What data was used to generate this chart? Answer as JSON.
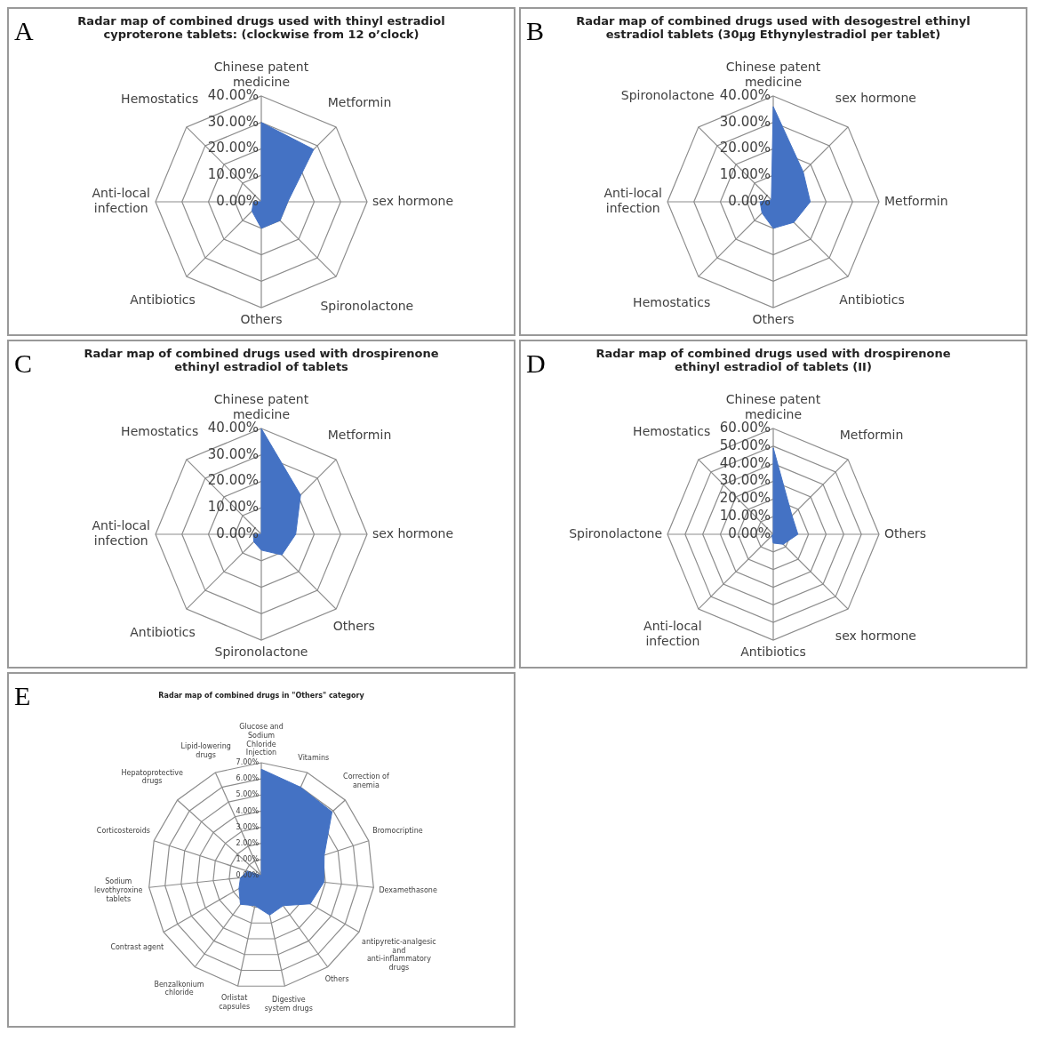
{
  "chart_data": [
    {
      "type": "radar",
      "title": "Radar map of combined drugs used with thinyl estradiol cyproterone tablets: (clockwise from 12 o’clock)",
      "annotations": [
        "A"
      ],
      "categories": [
        "Chinese patent medicine",
        "Metformin",
        "sex hormone",
        "Spironolactone",
        "Others",
        "Antibiotics",
        "Anti-local infection",
        "Hemostatics"
      ],
      "series": [
        {
          "color": "#4472c4",
          "values": [
            30,
            28,
            10,
            10,
            10,
            5,
            3,
            0
          ]
        }
      ],
      "ylim": [
        0,
        40
      ],
      "yticks": [
        {
          "value": 0,
          "label": "0.00%"
        },
        {
          "value": 10,
          "label": "10.00%"
        },
        {
          "value": 20,
          "label": "20.00%"
        },
        {
          "value": 30,
          "label": "30.00%"
        },
        {
          "value": 40,
          "label": "40.00%"
        }
      ],
      "grid": true,
      "marker": "none"
    },
    {
      "type": "radar",
      "title": "Radar map of combined drugs used with desogestrel ethinyl estradiol tablets (30μg Ethynylestradiol per tablet)",
      "annotations": [
        "B"
      ],
      "categories": [
        "Chinese patent medicine",
        "sex hormone",
        "Metformin",
        "Antibiotics",
        "Others",
        "Hemostatics",
        "Anti-local infection",
        "Spironolactone"
      ],
      "series": [
        {
          "color": "#4472c4",
          "values": [
            36,
            16,
            14,
            11,
            10,
            6,
            5,
            1
          ]
        }
      ],
      "ylim": [
        0,
        40
      ],
      "yticks": [
        {
          "value": 0,
          "label": "0.00%"
        },
        {
          "value": 10,
          "label": "10.00%"
        },
        {
          "value": 20,
          "label": "20.00%"
        },
        {
          "value": 30,
          "label": "30.00%"
        },
        {
          "value": 40,
          "label": "40.00%"
        }
      ],
      "grid": true,
      "marker": "none"
    },
    {
      "type": "radar",
      "title": "Radar map of combined drugs used with drospirenone ethinyl estradiol of tablets",
      "annotations": [
        "C"
      ],
      "categories": [
        "Chinese patent medicine",
        "Metformin",
        "sex hormone",
        "Others",
        "Spironolactone",
        "Antibiotics",
        "Anti-local infection",
        "Hemostatics"
      ],
      "series": [
        {
          "color": "#4472c4",
          "values": [
            40,
            21,
            13,
            11,
            6,
            4,
            3,
            0
          ]
        }
      ],
      "ylim": [
        0,
        40
      ],
      "yticks": [
        {
          "value": 0,
          "label": "0.00%"
        },
        {
          "value": 10,
          "label": "10.00%"
        },
        {
          "value": 20,
          "label": "20.00%"
        },
        {
          "value": 30,
          "label": "30.00%"
        },
        {
          "value": 40,
          "label": "40.00%"
        }
      ],
      "grid": true,
      "marker": "none"
    },
    {
      "type": "radar",
      "title": "Radar map of combined drugs used with drospirenone ethinyl estradiol of tablets (II)",
      "annotations": [
        "D"
      ],
      "categories": [
        "Chinese patent medicine",
        "Metformin",
        "Others",
        "sex hormone",
        "Antibiotics",
        "Anti-local infection",
        "Spironolactone",
        "Hemostatics"
      ],
      "series": [
        {
          "color": "#4472c4",
          "values": [
            49,
            15,
            14,
            8,
            5,
            1,
            0,
            0
          ]
        }
      ],
      "ylim": [
        0,
        60
      ],
      "yticks": [
        {
          "value": 0,
          "label": "0.00%"
        },
        {
          "value": 10,
          "label": "10.00%"
        },
        {
          "value": 20,
          "label": "20.00%"
        },
        {
          "value": 30,
          "label": "30.00%"
        },
        {
          "value": 40,
          "label": "40.00%"
        },
        {
          "value": 50,
          "label": "50.00%"
        },
        {
          "value": 60,
          "label": "60.00%"
        }
      ],
      "grid": true,
      "marker": "none"
    },
    {
      "type": "radar",
      "title": "Radar map of combined drugs in \"Others\" category",
      "annotations": [
        "E"
      ],
      "categories": [
        "Glucose and Sodium Chloride Injection",
        "Vitamins",
        "Correction of anemia",
        "Bromocriptine",
        "Dexamethasone",
        "antipyretic-analgesic and anti-inflammatory drugs",
        "Others",
        "Digestive system drugs",
        "Orlistat capsules",
        "Benzalkonium chloride",
        "Contrast agent",
        "Sodium levothyroxine tablets",
        "Corticosteroids",
        "Hepatoprotective drugs",
        "Lipid-lowering drugs"
      ],
      "series": [
        {
          "color": "#4472c4",
          "values": [
            6.6,
            6,
            5.9,
            4.1,
            3.9,
            3.5,
            2.3,
            2.5,
            1.9,
            2.2,
            1.6,
            1.3,
            0.9,
            0,
            0
          ]
        }
      ],
      "ylim": [
        0,
        7
      ],
      "yticks": [
        {
          "value": 0,
          "label": "0.00%"
        },
        {
          "value": 1,
          "label": "1.00%"
        },
        {
          "value": 2,
          "label": "2.00%"
        },
        {
          "value": 3,
          "label": "3.00%"
        },
        {
          "value": 4,
          "label": "4.00%"
        },
        {
          "value": 5,
          "label": "5.00%"
        },
        {
          "value": 6,
          "label": "6.00%"
        },
        {
          "value": 7,
          "label": "7.00%"
        }
      ],
      "grid": true,
      "marker": "none"
    }
  ]
}
